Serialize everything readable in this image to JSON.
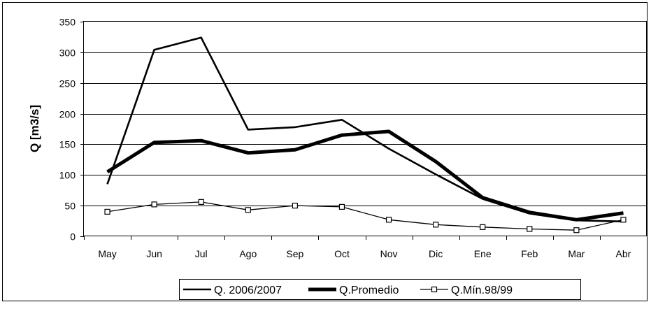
{
  "chart_data": {
    "type": "line",
    "title": "",
    "xlabel": "",
    "ylabel": "Q [m3/s]",
    "ylim": [
      0,
      350
    ],
    "yticks": [
      0,
      50,
      100,
      150,
      200,
      250,
      300,
      350
    ],
    "grid": true,
    "legend_position": "bottom",
    "categories": [
      "May",
      "Jun",
      "Jul",
      "Ago",
      "Sep",
      "Oct",
      "Nov",
      "Dic",
      "Ene",
      "Feb",
      "Mar",
      "Abr"
    ],
    "series": [
      {
        "name": "Q. 2006/2007",
        "style": "thin-line",
        "values": [
          85,
          304,
          324,
          174,
          178,
          190,
          143,
          101,
          61,
          37,
          26,
          24
        ]
      },
      {
        "name": "Q.Promedio",
        "style": "thick-line",
        "values": [
          105,
          153,
          156,
          136,
          141,
          165,
          171,
          122,
          63,
          39,
          27,
          38
        ]
      },
      {
        "name": "Q.Mín.98/99",
        "style": "line-square-markers",
        "values": [
          40,
          52,
          56,
          43,
          50,
          48,
          27,
          19,
          15,
          12,
          10,
          27
        ]
      }
    ]
  }
}
